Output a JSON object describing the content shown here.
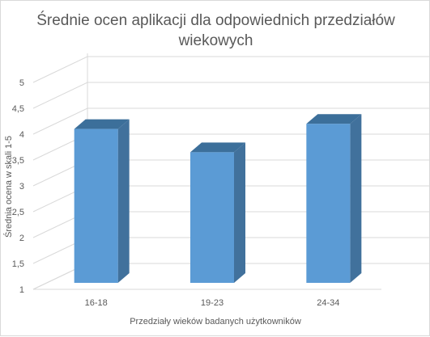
{
  "chart_data": {
    "type": "bar",
    "title_line1": "Średnie ocen aplikacji dla odpowiednich przedziałów",
    "title_line2": "wiekowych",
    "xlabel": "Przedziały wieków badanych użytkowników",
    "ylabel": "Średnia ocena w skali 1-5",
    "categories": [
      "16-18",
      "19-23",
      "24-34"
    ],
    "values": [
      4.1,
      3.65,
      4.2
    ],
    "yticks": [
      "1",
      "1,5",
      "2",
      "2,5",
      "3",
      "3,5",
      "4",
      "4,5",
      "5"
    ],
    "ylim": [
      1,
      5
    ],
    "grid": true,
    "legend": "none",
    "bar_color": "#5b9bd5",
    "bar_side_color": "#41719c",
    "bar_top_color": "#3c6f9a"
  }
}
